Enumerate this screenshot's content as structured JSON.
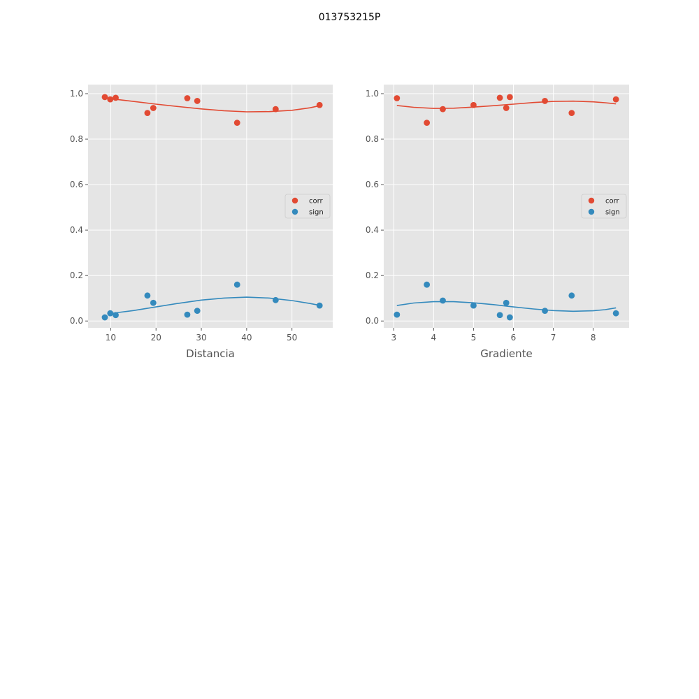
{
  "figure_title": "013753215P",
  "colors": {
    "corr": "#E24A33",
    "sign": "#348ABD",
    "panel_bg": "#E5E5E5",
    "grid": "#FFFFFF"
  },
  "chart_data": [
    {
      "type": "scatter",
      "xlabel": "Distancia",
      "ylabel": "",
      "xlim": [
        5,
        59
      ],
      "ylim": [
        -0.03,
        1.04
      ],
      "xticks": [
        10,
        20,
        30,
        40,
        50
      ],
      "yticks": [
        0.0,
        0.2,
        0.4,
        0.6,
        0.8,
        1.0
      ],
      "grid": true,
      "legend": "center-right",
      "series": [
        {
          "name": "corr",
          "color": "#E24A33",
          "points": [
            [
              8.7,
              0.985
            ],
            [
              9.9,
              0.975
            ],
            [
              11.1,
              0.982
            ],
            [
              18.1,
              0.915
            ],
            [
              19.4,
              0.937
            ],
            [
              26.9,
              0.98
            ],
            [
              29.1,
              0.968
            ],
            [
              37.9,
              0.872
            ],
            [
              46.4,
              0.932
            ],
            [
              56.1,
              0.95
            ]
          ],
          "fit": [
            [
              9.9,
              0.978
            ],
            [
              15,
              0.966
            ],
            [
              20,
              0.954
            ],
            [
              25,
              0.943
            ],
            [
              30,
              0.933
            ],
            [
              35,
              0.925
            ],
            [
              40,
              0.92
            ],
            [
              45,
              0.921
            ],
            [
              50,
              0.927
            ],
            [
              54,
              0.938
            ],
            [
              56.1,
              0.947
            ]
          ]
        },
        {
          "name": "sign",
          "color": "#348ABD",
          "points": [
            [
              8.7,
              0.016
            ],
            [
              9.9,
              0.034
            ],
            [
              11.1,
              0.026
            ],
            [
              18.1,
              0.112
            ],
            [
              19.4,
              0.08
            ],
            [
              26.9,
              0.028
            ],
            [
              29.1,
              0.045
            ],
            [
              37.9,
              0.16
            ],
            [
              46.4,
              0.092
            ],
            [
              56.1,
              0.068
            ]
          ],
          "fit": [
            [
              9.9,
              0.033
            ],
            [
              15,
              0.046
            ],
            [
              20,
              0.062
            ],
            [
              25,
              0.078
            ],
            [
              30,
              0.092
            ],
            [
              35,
              0.101
            ],
            [
              40,
              0.105
            ],
            [
              45,
              0.101
            ],
            [
              50,
              0.09
            ],
            [
              54,
              0.077
            ],
            [
              56.1,
              0.069
            ]
          ]
        }
      ]
    },
    {
      "type": "scatter",
      "xlabel": "Gradiente",
      "ylabel": "",
      "xlim": [
        2.75,
        8.9
      ],
      "ylim": [
        -0.03,
        1.04
      ],
      "xticks": [
        3,
        4,
        5,
        6,
        7,
        8
      ],
      "yticks": [
        0.0,
        0.2,
        0.4,
        0.6,
        0.8,
        1.0
      ],
      "grid": true,
      "legend": "center-right",
      "series": [
        {
          "name": "corr",
          "color": "#E24A33",
          "points": [
            [
              3.08,
              0.98
            ],
            [
              3.83,
              0.872
            ],
            [
              4.23,
              0.932
            ],
            [
              5.0,
              0.95
            ],
            [
              5.66,
              0.982
            ],
            [
              5.82,
              0.937
            ],
            [
              5.91,
              0.985
            ],
            [
              6.79,
              0.968
            ],
            [
              7.46,
              0.915
            ],
            [
              8.57,
              0.975
            ]
          ],
          "fit": [
            [
              3.08,
              0.948
            ],
            [
              3.5,
              0.94
            ],
            [
              4.0,
              0.935
            ],
            [
              4.5,
              0.936
            ],
            [
              5.0,
              0.941
            ],
            [
              5.5,
              0.947
            ],
            [
              6.0,
              0.954
            ],
            [
              6.5,
              0.961
            ],
            [
              7.0,
              0.966
            ],
            [
              7.5,
              0.967
            ],
            [
              8.0,
              0.964
            ],
            [
              8.3,
              0.96
            ],
            [
              8.57,
              0.955
            ]
          ]
        },
        {
          "name": "sign",
          "color": "#348ABD",
          "points": [
            [
              3.08,
              0.028
            ],
            [
              3.83,
              0.16
            ],
            [
              4.23,
              0.09
            ],
            [
              5.0,
              0.068
            ],
            [
              5.66,
              0.026
            ],
            [
              5.82,
              0.08
            ],
            [
              5.91,
              0.016
            ],
            [
              6.79,
              0.045
            ],
            [
              7.46,
              0.112
            ],
            [
              8.57,
              0.034
            ]
          ],
          "fit": [
            [
              3.08,
              0.068
            ],
            [
              3.5,
              0.079
            ],
            [
              4.0,
              0.085
            ],
            [
              4.5,
              0.085
            ],
            [
              5.0,
              0.08
            ],
            [
              5.5,
              0.072
            ],
            [
              6.0,
              0.062
            ],
            [
              6.5,
              0.053
            ],
            [
              7.0,
              0.046
            ],
            [
              7.5,
              0.043
            ],
            [
              8.0,
              0.045
            ],
            [
              8.3,
              0.05
            ],
            [
              8.57,
              0.058
            ]
          ]
        }
      ]
    }
  ]
}
